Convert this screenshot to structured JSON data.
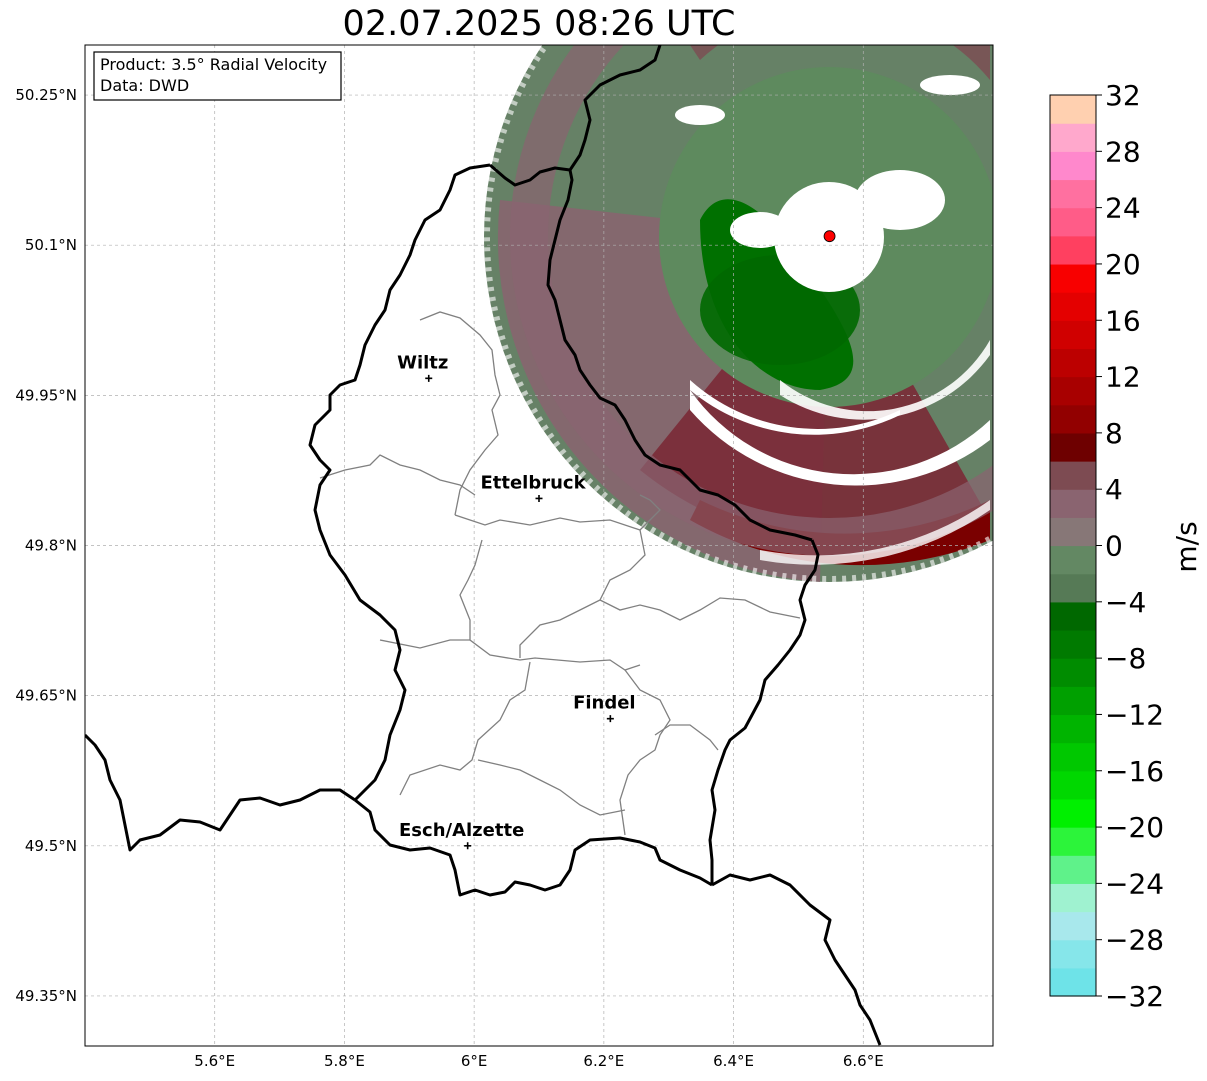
{
  "title": "02.07.2025 08:26 UTC",
  "info_box": {
    "product": "Product: 3.5° Radial Velocity",
    "source": "Data: DWD"
  },
  "map": {
    "lon_range": [
      5.4,
      6.8
    ],
    "lat_range": [
      49.3,
      50.3
    ],
    "lon_ticks": [
      {
        "value": 5.6,
        "label": "5.6°E"
      },
      {
        "value": 5.8,
        "label": "5.8°E"
      },
      {
        "value": 6.0,
        "label": "6°E"
      },
      {
        "value": 6.2,
        "label": "6.2°E"
      },
      {
        "value": 6.4,
        "label": "6.4°E"
      },
      {
        "value": 6.6,
        "label": "6.6°E"
      }
    ],
    "lat_ticks": [
      {
        "value": 49.35,
        "label": "49.35°N"
      },
      {
        "value": 49.5,
        "label": "49.5°N"
      },
      {
        "value": 49.65,
        "label": "49.65°N"
      },
      {
        "value": 49.8,
        "label": "49.8°N"
      },
      {
        "value": 49.95,
        "label": "49.95°N"
      },
      {
        "value": 50.1,
        "label": "50.1°N"
      },
      {
        "value": 50.25,
        "label": "50.25°N"
      }
    ],
    "grid": true,
    "cities": [
      {
        "name": "Wiltz",
        "lon": 5.93,
        "lat": 49.967
      },
      {
        "name": "Ettelbruck",
        "lon": 6.1,
        "lat": 49.847
      },
      {
        "name": "Findel",
        "lon": 6.21,
        "lat": 49.627
      },
      {
        "name": "Esch/Alzette",
        "lon": 5.99,
        "lat": 49.5
      }
    ],
    "radar_site": {
      "lon": 6.548,
      "lat": 50.109,
      "color": "#ff0000"
    }
  },
  "colorbar": {
    "unit": "m/s",
    "min": -32,
    "max": 32,
    "step": 2,
    "tick_labels": [
      "32",
      "28",
      "24",
      "20",
      "16",
      "12",
      "8",
      "4",
      "0",
      "−4",
      "−8",
      "−12",
      "−16",
      "−20",
      "−24",
      "−28",
      "−32"
    ],
    "colors_bottom_to_top": [
      "#6ee3e8",
      "#86e6ea",
      "#a8e8ec",
      "#9ff2d0",
      "#5ff28a",
      "#2cf43a",
      "#00f000",
      "#00d800",
      "#00c800",
      "#00b400",
      "#00a000",
      "#008c00",
      "#007a00",
      "#006800",
      "#567a56",
      "#638863",
      "#877777",
      "#8a6470",
      "#7d4b52",
      "#6e0000",
      "#920000",
      "#a80000",
      "#bc0000",
      "#d00000",
      "#e40000",
      "#f80000",
      "#ff4060",
      "#ff5c88",
      "#ff70a0",
      "#ff88cc",
      "#ffa8cc",
      "#ffd0b0"
    ]
  }
}
